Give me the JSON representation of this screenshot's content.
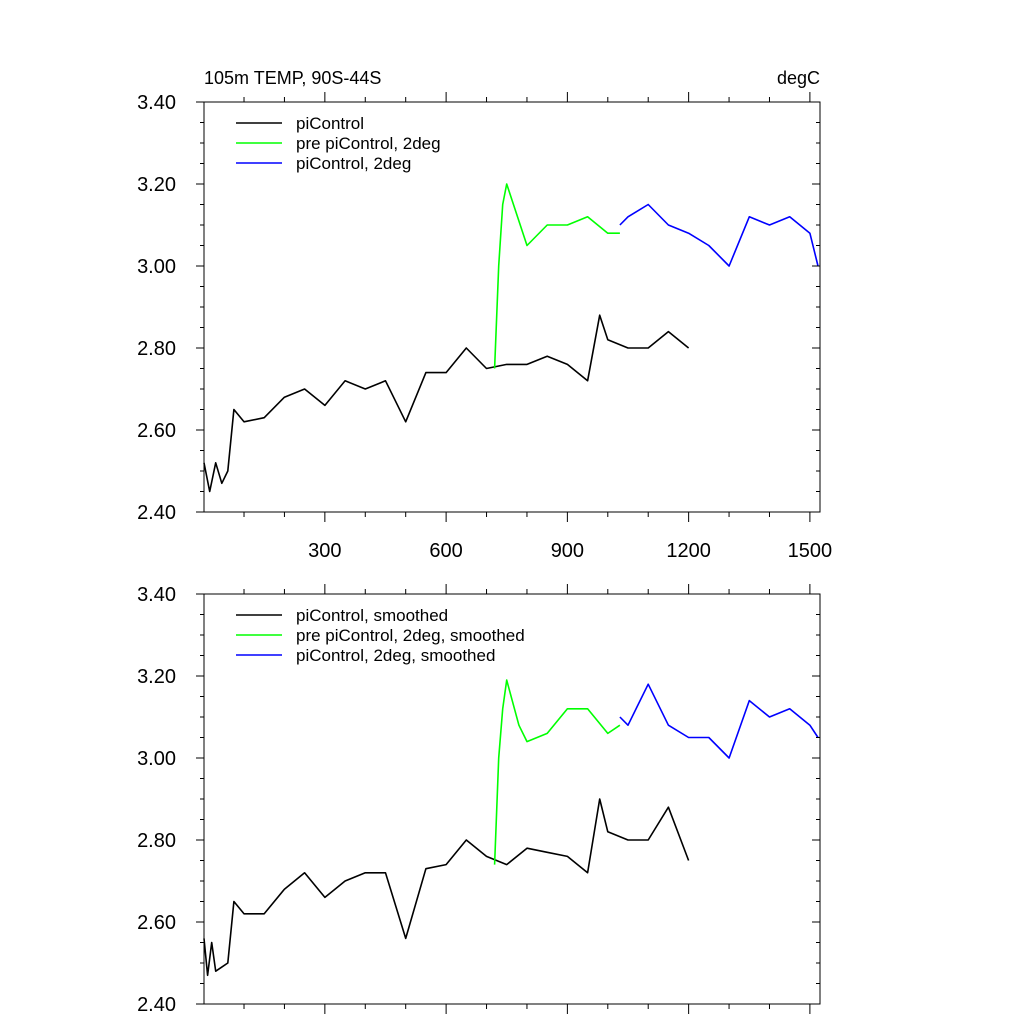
{
  "chart_data": [
    {
      "type": "line",
      "title": "105m TEMP, 90S-44S",
      "units": "degC",
      "xlim": [
        1,
        1525
      ],
      "ylim": [
        2.4,
        3.4
      ],
      "x_ticks": [
        300,
        600,
        900,
        1200,
        1500
      ],
      "y_ticks": [
        "2.40",
        "2.60",
        "2.80",
        "3.00",
        "3.20",
        "3.40"
      ],
      "legend_position": "top-left",
      "series": [
        {
          "name": "piControl",
          "color": "#000000",
          "x": [
            1,
            15,
            30,
            45,
            60,
            75,
            100,
            150,
            200,
            250,
            300,
            350,
            400,
            450,
            500,
            550,
            600,
            650,
            700,
            750,
            800,
            850,
            900,
            950,
            980,
            1000,
            1050,
            1100,
            1150,
            1200
          ],
          "y": [
            2.52,
            2.45,
            2.52,
            2.47,
            2.5,
            2.65,
            2.62,
            2.63,
            2.68,
            2.7,
            2.66,
            2.72,
            2.7,
            2.72,
            2.62,
            2.74,
            2.74,
            2.8,
            2.75,
            2.76,
            2.76,
            2.78,
            2.76,
            2.72,
            2.88,
            2.82,
            2.8,
            2.8,
            2.84,
            2.8
          ]
        },
        {
          "name": "pre piControl, 2deg",
          "color": "#00ff00",
          "x": [
            720,
            730,
            740,
            750,
            800,
            850,
            900,
            950,
            1000,
            1030
          ],
          "y": [
            2.75,
            3.0,
            3.15,
            3.2,
            3.05,
            3.1,
            3.1,
            3.12,
            3.08,
            3.08
          ]
        },
        {
          "name": "piControl, 2deg",
          "color": "#0000ff",
          "x": [
            1030,
            1050,
            1100,
            1150,
            1200,
            1250,
            1300,
            1350,
            1400,
            1450,
            1500,
            1520
          ],
          "y": [
            3.1,
            3.12,
            3.15,
            3.1,
            3.08,
            3.05,
            3.0,
            3.12,
            3.1,
            3.12,
            3.08,
            3.0
          ]
        }
      ]
    },
    {
      "type": "line",
      "xlim": [
        1,
        1525
      ],
      "ylim": [
        2.4,
        3.4
      ],
      "y_ticks": [
        "2.40",
        "2.60",
        "2.80",
        "3.00",
        "3.20",
        "3.40"
      ],
      "legend_position": "top-left",
      "series": [
        {
          "name": "piControl, smoothed",
          "color": "#000000",
          "x": [
            1,
            10,
            20,
            30,
            45,
            60,
            75,
            100,
            150,
            200,
            250,
            300,
            350,
            400,
            450,
            500,
            550,
            600,
            650,
            700,
            750,
            800,
            850,
            900,
            950,
            980,
            1000,
            1050,
            1100,
            1150,
            1200
          ],
          "y": [
            2.56,
            2.47,
            2.55,
            2.48,
            2.49,
            2.5,
            2.65,
            2.62,
            2.62,
            2.68,
            2.72,
            2.66,
            2.7,
            2.72,
            2.72,
            2.56,
            2.73,
            2.74,
            2.8,
            2.76,
            2.74,
            2.78,
            2.77,
            2.76,
            2.72,
            2.9,
            2.82,
            2.8,
            2.8,
            2.88,
            2.75
          ]
        },
        {
          "name": "pre piControl, 2deg, smoothed",
          "color": "#00ff00",
          "x": [
            720,
            730,
            740,
            750,
            780,
            800,
            850,
            900,
            950,
            1000,
            1030
          ],
          "y": [
            2.74,
            3.0,
            3.12,
            3.19,
            3.08,
            3.04,
            3.06,
            3.12,
            3.12,
            3.06,
            3.08
          ]
        },
        {
          "name": "piControl, 2deg, smoothed",
          "color": "#0000ff",
          "x": [
            1030,
            1050,
            1100,
            1150,
            1200,
            1250,
            1300,
            1350,
            1400,
            1450,
            1500,
            1520
          ],
          "y": [
            3.1,
            3.08,
            3.18,
            3.08,
            3.05,
            3.05,
            3.0,
            3.14,
            3.1,
            3.12,
            3.08,
            3.05
          ]
        }
      ]
    }
  ]
}
